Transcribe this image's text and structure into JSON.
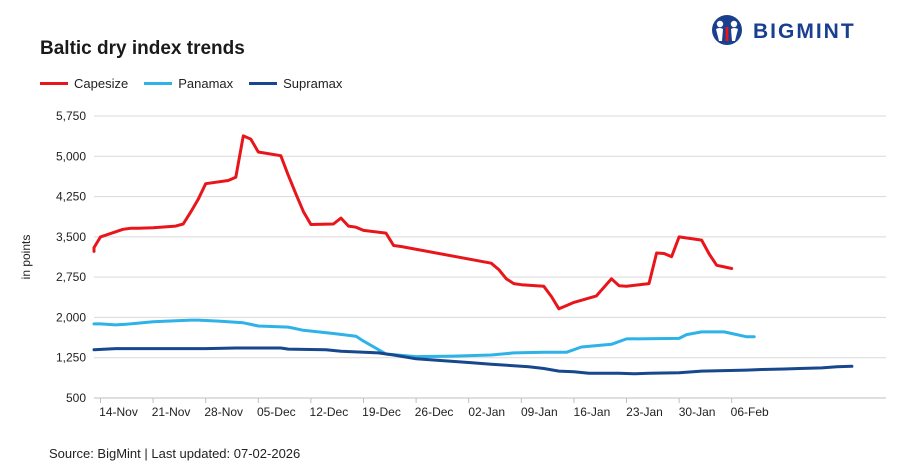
{
  "title": "Baltic dry index trends",
  "source": "Source: BigMint | Last updated: 07-02-2026",
  "logo": {
    "text": "BIGMINT",
    "color": "#1a3f8f"
  },
  "chart_data": {
    "type": "line",
    "title": "Baltic dry index trends",
    "ylabel": "in points",
    "xlabel": "",
    "ylim": [
      500,
      5750
    ],
    "yticks": [
      500,
      1250,
      2000,
      2750,
      3500,
      4250,
      5000,
      5750
    ],
    "ytick_labels": [
      "500",
      "1,250",
      "2,000",
      "2,750",
      "3,500",
      "4,250",
      "5,000",
      "5,750"
    ],
    "xticks": [
      "14-Nov",
      "21-Nov",
      "28-Nov",
      "05-Dec",
      "12-Dec",
      "19-Dec",
      "26-Dec",
      "02-Jan",
      "09-Jan",
      "16-Jan",
      "23-Jan",
      "30-Jan",
      "06-Feb"
    ],
    "grid": "horizontal",
    "legend_position": "top-left",
    "series": [
      {
        "name": "Capesize",
        "color": "#e8161b",
        "points": [
          [
            "2025-11-10",
            3230
          ],
          [
            "2025-11-13",
            3300
          ],
          [
            "2025-11-14",
            3500
          ],
          [
            "2025-11-17",
            3640
          ],
          [
            "2025-11-18",
            3660
          ],
          [
            "2025-11-19",
            3660
          ],
          [
            "2025-11-20",
            3665
          ],
          [
            "2025-11-21",
            3670
          ],
          [
            "2025-11-24",
            3700
          ],
          [
            "2025-11-25",
            3740
          ],
          [
            "2025-11-26",
            3960
          ],
          [
            "2025-11-27",
            4200
          ],
          [
            "2025-11-28",
            4490
          ],
          [
            "2025-12-01",
            4550
          ],
          [
            "2025-12-02",
            4610
          ],
          [
            "2025-12-03",
            5380
          ],
          [
            "2025-12-04",
            5320
          ],
          [
            "2025-12-05",
            5080
          ],
          [
            "2025-12-08",
            5010
          ],
          [
            "2025-12-09",
            4640
          ],
          [
            "2025-12-10",
            4300
          ],
          [
            "2025-12-11",
            3970
          ],
          [
            "2025-12-12",
            3730
          ],
          [
            "2025-12-15",
            3740
          ],
          [
            "2025-12-16",
            3850
          ],
          [
            "2025-12-17",
            3700
          ],
          [
            "2025-12-18",
            3680
          ],
          [
            "2025-12-19",
            3620
          ],
          [
            "2025-12-22",
            3570
          ],
          [
            "2025-12-23",
            3340
          ],
          [
            "2025-12-24",
            3320
          ],
          [
            "2026-01-05",
            3010
          ],
          [
            "2026-01-06",
            2890
          ],
          [
            "2026-01-07",
            2720
          ],
          [
            "2026-01-08",
            2630
          ],
          [
            "2026-01-09",
            2610
          ],
          [
            "2026-01-12",
            2580
          ],
          [
            "2026-01-13",
            2390
          ],
          [
            "2026-01-14",
            2160
          ],
          [
            "2026-01-15",
            2220
          ],
          [
            "2026-01-16",
            2280
          ],
          [
            "2026-01-19",
            2400
          ],
          [
            "2026-01-20",
            2560
          ],
          [
            "2026-01-21",
            2720
          ],
          [
            "2026-01-22",
            2590
          ],
          [
            "2026-01-23",
            2580
          ],
          [
            "2026-01-26",
            2630
          ],
          [
            "2026-01-27",
            3200
          ],
          [
            "2026-01-28",
            3190
          ],
          [
            "2026-01-29",
            3130
          ],
          [
            "2026-01-30",
            3500
          ],
          [
            "2026-02-02",
            3440
          ],
          [
            "2026-02-03",
            3180
          ],
          [
            "2026-02-04",
            2970
          ],
          [
            "2026-02-05",
            2940
          ],
          [
            "2026-02-06",
            2910
          ]
        ]
      },
      {
        "name": "Panamax",
        "color": "#2eb2e8",
        "points": [
          [
            "2025-11-10",
            1880
          ],
          [
            "2025-11-14",
            1880
          ],
          [
            "2025-11-16",
            1860
          ],
          [
            "2025-11-18",
            1880
          ],
          [
            "2025-11-21",
            1920
          ],
          [
            "2025-11-26",
            1950
          ],
          [
            "2025-11-27",
            1950
          ],
          [
            "2025-11-30",
            1930
          ],
          [
            "2025-12-03",
            1900
          ],
          [
            "2025-12-04",
            1870
          ],
          [
            "2025-12-05",
            1840
          ],
          [
            "2025-12-09",
            1820
          ],
          [
            "2025-12-11",
            1760
          ],
          [
            "2025-12-15",
            1700
          ],
          [
            "2025-12-18",
            1650
          ],
          [
            "2025-12-19",
            1560
          ],
          [
            "2025-12-22",
            1320
          ],
          [
            "2025-12-26",
            1270
          ],
          [
            "2025-12-31",
            1280
          ],
          [
            "2026-01-05",
            1300
          ],
          [
            "2026-01-08",
            1340
          ],
          [
            "2026-01-12",
            1350
          ],
          [
            "2026-01-15",
            1350
          ],
          [
            "2026-01-17",
            1450
          ],
          [
            "2026-01-21",
            1500
          ],
          [
            "2026-01-23",
            1600
          ],
          [
            "2026-01-30",
            1610
          ],
          [
            "2026-01-31",
            1680
          ],
          [
            "2026-02-02",
            1730
          ],
          [
            "2026-02-05",
            1730
          ],
          [
            "2026-02-06",
            1700
          ],
          [
            "2026-02-08",
            1640
          ],
          [
            "2026-02-09",
            1640
          ]
        ]
      },
      {
        "name": "Supramax",
        "color": "#17478c",
        "points": [
          [
            "2025-11-10",
            1400
          ],
          [
            "2025-11-16",
            1420
          ],
          [
            "2025-11-28",
            1420
          ],
          [
            "2025-12-02",
            1430
          ],
          [
            "2025-12-08",
            1430
          ],
          [
            "2025-12-09",
            1410
          ],
          [
            "2025-12-14",
            1400
          ],
          [
            "2025-12-16",
            1370
          ],
          [
            "2025-12-21",
            1340
          ],
          [
            "2025-12-23",
            1300
          ],
          [
            "2025-12-26",
            1230
          ],
          [
            "2025-12-29",
            1200
          ],
          [
            "2026-01-02",
            1160
          ],
          [
            "2026-01-05",
            1130
          ],
          [
            "2026-01-10",
            1080
          ],
          [
            "2026-01-12",
            1050
          ],
          [
            "2026-01-14",
            1000
          ],
          [
            "2026-01-16",
            990
          ],
          [
            "2026-01-18",
            960
          ],
          [
            "2026-01-22",
            960
          ],
          [
            "2026-01-24",
            950
          ],
          [
            "2026-01-26",
            960
          ],
          [
            "2026-01-30",
            970
          ],
          [
            "2026-02-02",
            1000
          ],
          [
            "2026-02-08",
            1020
          ],
          [
            "2026-02-10",
            1030
          ],
          [
            "2026-02-13",
            1040
          ],
          [
            "2026-02-15",
            1050
          ],
          [
            "2026-02-18",
            1060
          ],
          [
            "2026-02-20",
            1080
          ],
          [
            "2026-02-22",
            1090
          ]
        ]
      }
    ]
  }
}
